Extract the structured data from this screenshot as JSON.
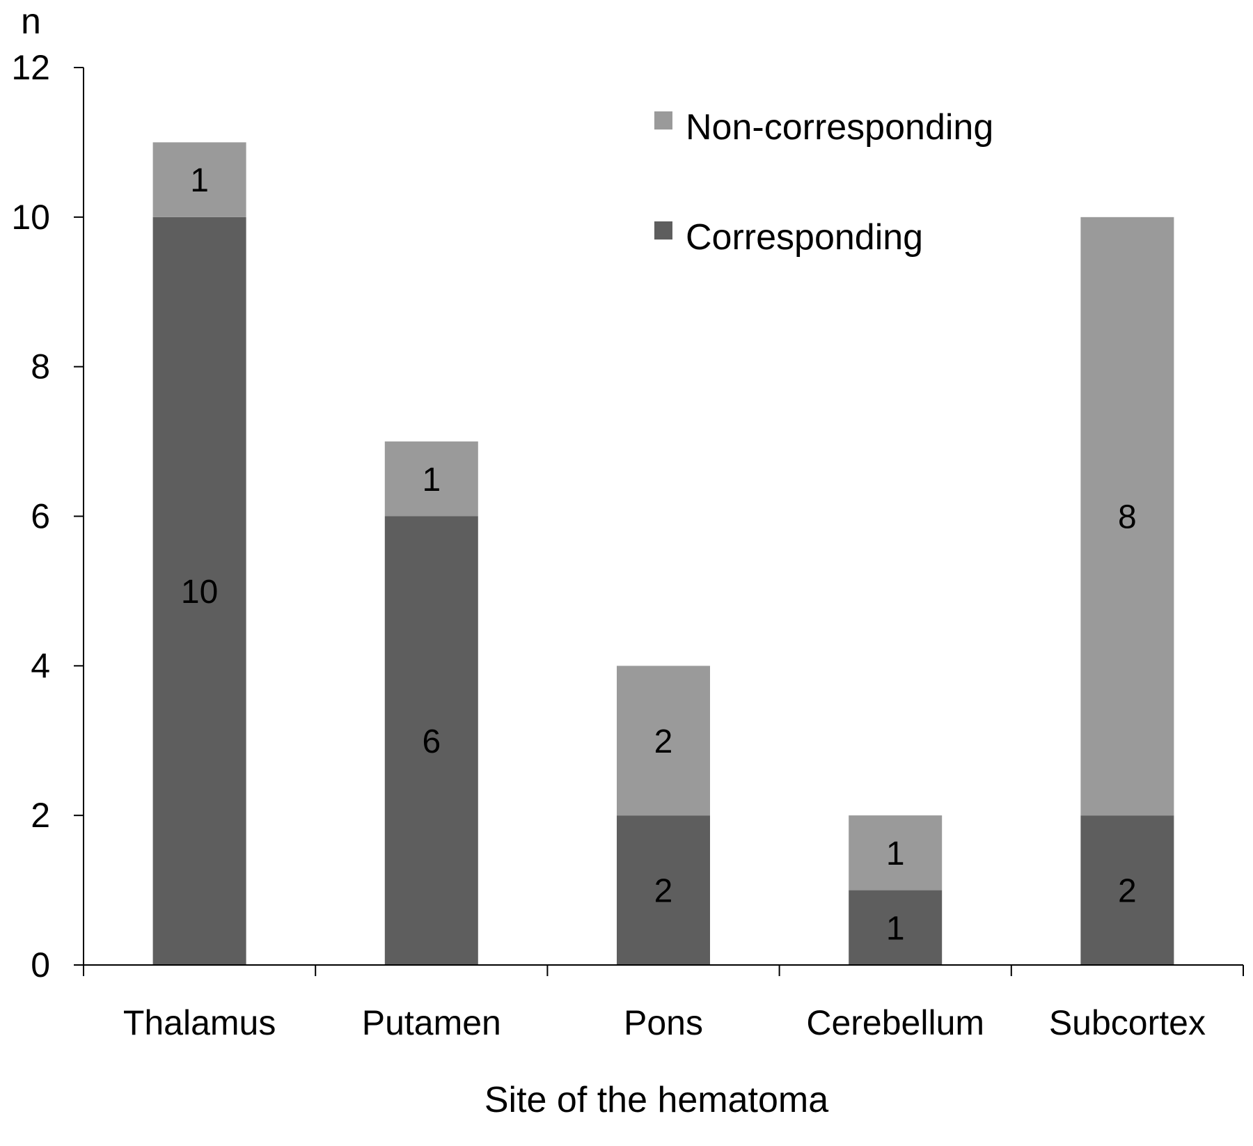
{
  "chart_data": {
    "type": "bar",
    "stacked": true,
    "categories": [
      "Thalamus",
      "Putamen",
      "Pons",
      "Cerebellum",
      "Subcortex"
    ],
    "series": [
      {
        "name": "Corresponding",
        "values": [
          10,
          6,
          2,
          1,
          2
        ],
        "color": "#5e5e5e"
      },
      {
        "name": "Non-corresponding",
        "values": [
          1,
          1,
          2,
          1,
          8
        ],
        "color": "#9a9a9a"
      }
    ],
    "xlabel": "Site of the hematoma",
    "ylabel": "n",
    "ylim": [
      0,
      12
    ],
    "yticks": [
      0,
      2,
      4,
      6,
      8,
      10,
      12
    ],
    "grid": false,
    "legend": {
      "position": "top-right",
      "order": [
        "Non-corresponding",
        "Corresponding"
      ]
    },
    "data_labels": true
  }
}
